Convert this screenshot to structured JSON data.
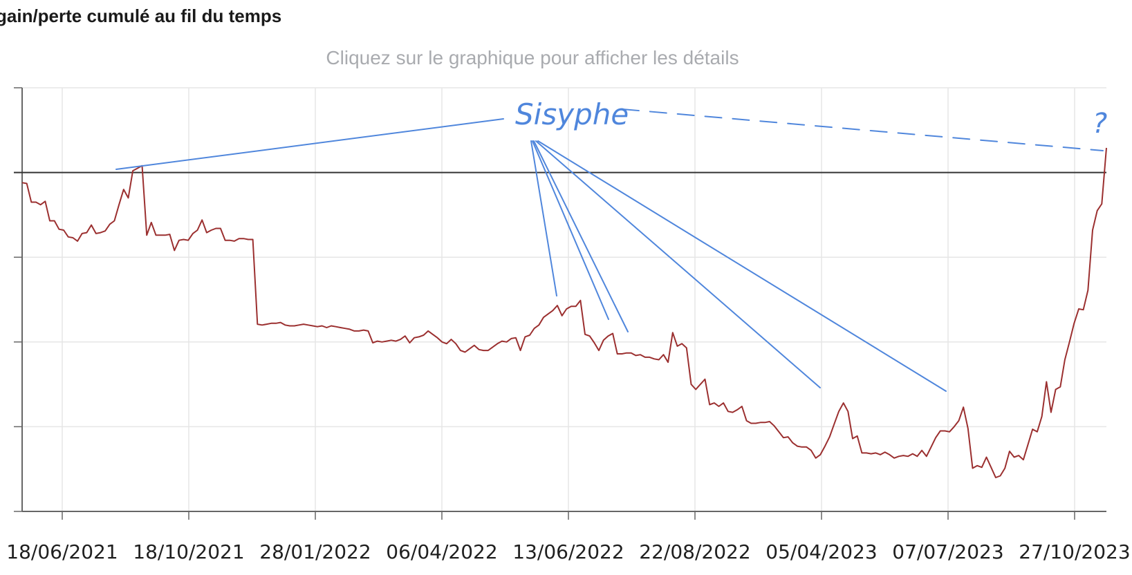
{
  "title": "gain/perte cumulé au fil du temps",
  "subtitle": "Cliquez sur le graphique pour afficher les détails",
  "colors": {
    "line": "#9b2f2f",
    "zero_line": "#333333",
    "grid": "#e6e6e6",
    "axis": "#666666",
    "annotation": "#4f86dc"
  },
  "chart_data": {
    "type": "line",
    "title": "gain/perte cumulé au fil du temps",
    "xlabel": "",
    "ylabel": "",
    "x_tick_labels": [
      "18/06/2021",
      "18/10/2021",
      "28/01/2022",
      "06/04/2022",
      "13/06/2022",
      "22/08/2022",
      "05/04/2023",
      "07/07/2023",
      "27/10/2023"
    ],
    "y_tick_labels_visible": false,
    "ylim": [
      -4,
      1
    ],
    "zero_line": true,
    "grid": true,
    "values": [
      -0.12,
      -0.13,
      -0.35,
      -0.35,
      -0.38,
      -0.34,
      -0.57,
      -0.57,
      -0.67,
      -0.68,
      -0.76,
      -0.77,
      -0.81,
      -0.72,
      -0.71,
      -0.62,
      -0.72,
      -0.71,
      -0.69,
      -0.61,
      -0.57,
      -0.38,
      -0.2,
      -0.3,
      0.02,
      0.05,
      0.08,
      -0.74,
      -0.59,
      -0.74,
      -0.74,
      -0.74,
      -0.73,
      -0.92,
      -0.8,
      -0.79,
      -0.8,
      -0.72,
      -0.68,
      -0.56,
      -0.71,
      -0.68,
      -0.66,
      -0.66,
      -0.8,
      -0.8,
      -0.81,
      -0.78,
      -0.78,
      -0.79,
      -0.79,
      -1.79,
      -1.8,
      -1.79,
      -1.78,
      -1.78,
      -1.77,
      -1.8,
      -1.81,
      -1.81,
      -1.8,
      -1.79,
      -1.8,
      -1.81,
      -1.82,
      -1.81,
      -1.83,
      -1.81,
      -1.82,
      -1.83,
      -1.84,
      -1.85,
      -1.87,
      -1.87,
      -1.86,
      -1.87,
      -2.01,
      -1.99,
      -2.0,
      -1.99,
      -1.98,
      -1.99,
      -1.97,
      -1.93,
      -2.01,
      -1.95,
      -1.94,
      -1.92,
      -1.87,
      -1.91,
      -1.95,
      -2.0,
      -2.02,
      -1.97,
      -2.02,
      -2.1,
      -2.12,
      -2.08,
      -2.04,
      -2.09,
      -2.1,
      -2.1,
      -2.06,
      -2.02,
      -1.99,
      -2.0,
      -1.96,
      -1.95,
      -2.1,
      -1.94,
      -1.92,
      -1.84,
      -1.8,
      -1.71,
      -1.67,
      -1.63,
      -1.57,
      -1.69,
      -1.61,
      -1.58,
      -1.58,
      -1.51,
      -1.91,
      -1.93,
      -2.01,
      -2.1,
      -1.98,
      -1.93,
      -1.9,
      -2.14,
      -2.14,
      -2.13,
      -2.13,
      -2.16,
      -2.15,
      -2.18,
      -2.18,
      -2.2,
      -2.21,
      -2.15,
      -2.24,
      -1.89,
      -2.05,
      -2.02,
      -2.07,
      -2.5,
      -2.56,
      -2.5,
      -2.44,
      -2.74,
      -2.72,
      -2.76,
      -2.72,
      -2.82,
      -2.83,
      -2.8,
      -2.76,
      -2.93,
      -2.96,
      -2.96,
      -2.95,
      -2.95,
      -2.94,
      -2.99,
      -3.06,
      -3.13,
      -3.12,
      -3.19,
      -3.23,
      -3.24,
      -3.24,
      -3.28,
      -3.37,
      -3.33,
      -3.23,
      -3.12,
      -2.97,
      -2.82,
      -2.72,
      -2.82,
      -3.14,
      -3.11,
      -3.31,
      -3.31,
      -3.32,
      -3.31,
      -3.33,
      -3.3,
      -3.33,
      -3.37,
      -3.35,
      -3.34,
      -3.35,
      -3.32,
      -3.35,
      -3.28,
      -3.35,
      -3.24,
      -3.13,
      -3.05,
      -3.05,
      -3.06,
      -3.0,
      -2.93,
      -2.77,
      -3.02,
      -3.49,
      -3.46,
      -3.48,
      -3.36,
      -3.48,
      -3.6,
      -3.58,
      -3.49,
      -3.29,
      -3.36,
      -3.34,
      -3.39,
      -3.21,
      -3.03,
      -3.06,
      -2.88,
      -2.47,
      -2.83,
      -2.56,
      -2.53,
      -2.21,
      -2.0,
      -1.78,
      -1.61,
      -1.62,
      -1.39,
      -0.68,
      -0.45,
      -0.37,
      0.29
    ]
  },
  "annotation": {
    "label": "Sisyphe",
    "question_mark": "?"
  }
}
